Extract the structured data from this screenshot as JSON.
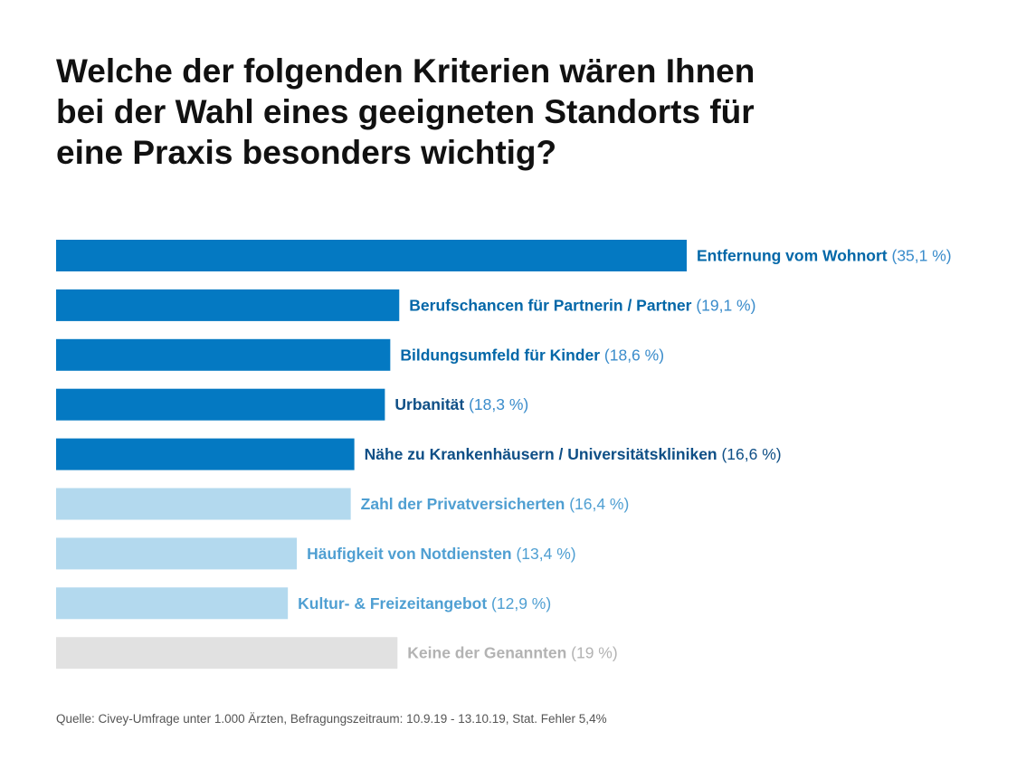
{
  "title": "Welche der folgenden Kriterien wären Ihnen\nbei der Wahl eines geeigneten Standorts für\neine Praxis besonders wichtig?",
  "source": "Quelle: Civey-Umfrage unter 1.000 Ärzten, Befragungszeitraum: 10.9.19 - 13.10.19, Stat. Fehler 5,4%",
  "colors": {
    "dark": "#0479c2",
    "light": "#b3d9ee",
    "gray": "#e1e1e1",
    "label_dark": "#0367a8",
    "label_dark_value": "#3a8ccb",
    "label_navy": "#0f4f86",
    "label_light": "#4f9fd2",
    "label_gray": "#b3b3b3"
  },
  "chart_data": {
    "type": "bar",
    "orientation": "horizontal",
    "grid": false,
    "categories": [
      "Entfernung vom Wohnort",
      "Berufschancen für Partnerin / Partner",
      "Bildungsumfeld für Kinder",
      "Urbanität",
      "Nähe zu Krankenhäusern / Universitätskliniken",
      "Zahl der Privatversicherten",
      "Häufigkeit von Notdiensten",
      "Kultur- & Freizeitangebot",
      "Keine der Genannten"
    ],
    "value_labels": [
      "(35,1 %)",
      "(19,1 %)",
      "(18,6 %)",
      "(18,3 %)",
      "(16,6 %)",
      "(16,4 %)",
      "(13,4 %)",
      "(12,9 %)",
      "(19 %)"
    ],
    "values": [
      35.1,
      19.1,
      18.6,
      18.3,
      16.6,
      16.4,
      13.4,
      12.9,
      19
    ],
    "bar_colors": [
      "#0479c2",
      "#0479c2",
      "#0479c2",
      "#0479c2",
      "#0479c2",
      "#b3d9ee",
      "#b3d9ee",
      "#b3d9ee",
      "#e1e1e1"
    ],
    "category_label_colors": [
      "#0367a8",
      "#0367a8",
      "#0367a8",
      "#0f4f86",
      "#0f4f86",
      "#4f9fd2",
      "#4f9fd2",
      "#4f9fd2",
      "#b3b3b3"
    ],
    "value_label_colors": [
      "#3a8ccb",
      "#3a8ccb",
      "#3a8ccb",
      "#3a8ccb",
      "#0f4f86",
      "#4f9fd2",
      "#4f9fd2",
      "#4f9fd2",
      "#b3b3b3"
    ],
    "value_label_bold": [
      false,
      false,
      false,
      false,
      true,
      false,
      false,
      false,
      false
    ],
    "xlim": [
      0,
      35.1
    ]
  }
}
